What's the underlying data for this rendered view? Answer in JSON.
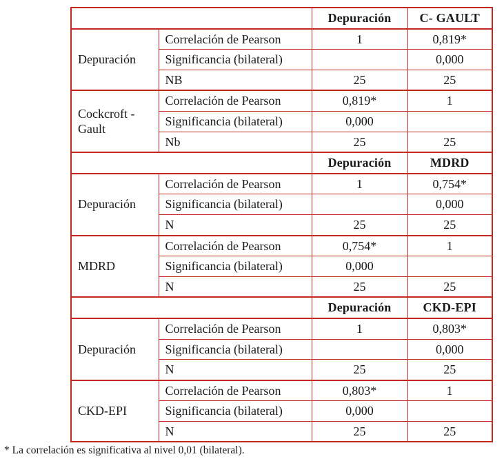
{
  "table": {
    "border_color": "#c3271e",
    "sections": [
      {
        "col_headers": [
          "Depuración",
          "C- GAULT"
        ],
        "groups": [
          {
            "label": "Depuración",
            "rows": [
              {
                "stat": "Correlación de Pearson",
                "v1": "1",
                "v2": "0,819*"
              },
              {
                "stat": "Significancia (bilateral)",
                "v1": "",
                "v2": "0,000"
              },
              {
                "stat": "NB",
                "v1": "25",
                "v2": "25"
              }
            ]
          },
          {
            "label": "Cockcroft - Gault",
            "rows": [
              {
                "stat": "Correlación de Pearson",
                "v1": "0,819*",
                "v2": "1"
              },
              {
                "stat": "Significancia (bilateral)",
                "v1": "0,000",
                "v2": ""
              },
              {
                "stat": "Nb",
                "v1": "25",
                "v2": "25"
              }
            ]
          }
        ]
      },
      {
        "col_headers": [
          "Depuración",
          "MDRD"
        ],
        "groups": [
          {
            "label": "Depuración",
            "rows": [
              {
                "stat": "Correlación de Pearson",
                "v1": "1",
                "v2": "0,754*"
              },
              {
                "stat": "Significancia (bilateral)",
                "v1": "",
                "v2": "0,000"
              },
              {
                "stat": "N",
                "v1": "25",
                "v2": "25"
              }
            ]
          },
          {
            "label": "MDRD",
            "rows": [
              {
                "stat": "Correlación de Pearson",
                "v1": "0,754*",
                "v2": "1"
              },
              {
                "stat": "Significancia (bilateral)",
                "v1": "0,000",
                "v2": ""
              },
              {
                "stat": "N",
                "v1": "25",
                "v2": "25"
              }
            ]
          }
        ]
      },
      {
        "col_headers": [
          "Depuración",
          "CKD-EPI"
        ],
        "groups": [
          {
            "label": "Depuración",
            "rows": [
              {
                "stat": "Correlación de Pearson",
                "v1": "1",
                "v2": "0,803*"
              },
              {
                "stat": "Significancia (bilateral)",
                "v1": "",
                "v2": "0,000"
              },
              {
                "stat": "N",
                "v1": "25",
                "v2": "25"
              }
            ]
          },
          {
            "label": "CKD-EPI",
            "rows": [
              {
                "stat": "Correlación de Pearson",
                "v1": "0,803*",
                "v2": "1"
              },
              {
                "stat": "Significancia (bilateral)",
                "v1": "0,000",
                "v2": ""
              },
              {
                "stat": "N",
                "v1": "25",
                "v2": "25"
              }
            ]
          }
        ]
      }
    ]
  },
  "footnote": "* La correlación es significativa al nivel 0,01 (bilateral)."
}
